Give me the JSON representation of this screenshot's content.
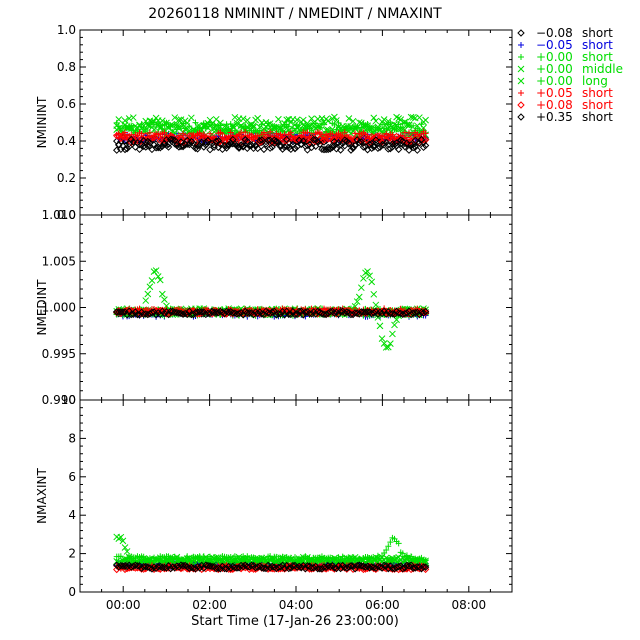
{
  "title": "20260118 NMININT / NMEDINT / NMAXINT",
  "xlabel": "Start Time (17-Jan-26 23:00:00)",
  "legend_placement": "top-right",
  "legend": [
    {
      "symbol": "diamond",
      "value": "−0.08",
      "band": "short",
      "color": "#000000"
    },
    {
      "symbol": "plus",
      "value": "−0.05",
      "band": "short",
      "color": "#0000dd"
    },
    {
      "symbol": "plus",
      "value": "+0.00",
      "band": "short",
      "color": "#00dd00"
    },
    {
      "symbol": "cross",
      "value": "+0.00",
      "band": "middle",
      "color": "#00dd00"
    },
    {
      "symbol": "cross",
      "value": "+0.00",
      "band": "long",
      "color": "#00dd00"
    },
    {
      "symbol": "plus",
      "value": "+0.05",
      "band": "short",
      "color": "#ff0000"
    },
    {
      "symbol": "diamond",
      "value": "+0.08",
      "band": "short",
      "color": "#ff0000"
    },
    {
      "symbol": "diamond",
      "value": "+0.35",
      "band": "short",
      "color": "#000000"
    }
  ],
  "chart_data": [
    {
      "type": "scatter",
      "ylabel": "NMININT",
      "xlim": [
        -1,
        9
      ],
      "ylim": [
        0.0,
        1.0
      ],
      "xticks": [
        "00:00",
        "02:00",
        "04:00",
        "06:00",
        "08:00"
      ],
      "yticks": [
        "0.0",
        "0.2",
        "0.4",
        "0.6",
        "0.8",
        "1.0"
      ],
      "x_range": [
        -0.15,
        7.0
      ],
      "series": [
        {
          "color": "#000000",
          "symbol": "diamond",
          "level": 0.39,
          "spread": 0.03
        },
        {
          "color": "#0000dd",
          "symbol": "plus",
          "level": 0.42,
          "spread": 0.02
        },
        {
          "color": "#00dd00",
          "symbol": "plus",
          "level": 0.47,
          "spread": 0.03
        },
        {
          "color": "#00dd00",
          "symbol": "cross",
          "level": 0.49,
          "spread": 0.04
        },
        {
          "color": "#00dd00",
          "symbol": "cross",
          "level": 0.46,
          "spread": 0.03
        },
        {
          "color": "#ff0000",
          "symbol": "plus",
          "level": 0.43,
          "spread": 0.02
        },
        {
          "color": "#ff0000",
          "symbol": "diamond",
          "level": 0.41,
          "spread": 0.02
        },
        {
          "color": "#000000",
          "symbol": "diamond",
          "level": 0.38,
          "spread": 0.03
        }
      ]
    },
    {
      "type": "scatter",
      "ylabel": "NMEDINT",
      "xlim": [
        -1,
        9
      ],
      "ylim": [
        0.99,
        1.01
      ],
      "xticks": [
        "00:00",
        "02:00",
        "04:00",
        "06:00",
        "08:00"
      ],
      "yticks": [
        "0.990",
        "0.995",
        "1.000",
        "1.005",
        "1.010"
      ],
      "x_range": [
        -0.15,
        7.0
      ],
      "series": [
        {
          "color": "#000000",
          "symbol": "diamond",
          "level": 0.9995,
          "spread": 0.0002
        },
        {
          "color": "#0000dd",
          "symbol": "plus",
          "level": 0.9993,
          "spread": 0.0003
        },
        {
          "color": "#00dd00",
          "symbol": "plus",
          "level": 0.9995,
          "spread": 0.0004
        },
        {
          "color": "#00dd00",
          "symbol": "cross",
          "level": 0.9996,
          "spread": 0.0003,
          "bumps": [
            {
              "x": 0.75,
              "h": 0.0045
            },
            {
              "x": 5.65,
              "h": 0.0045
            },
            {
              "x": 6.1,
              "h": -0.004
            }
          ]
        },
        {
          "color": "#00dd00",
          "symbol": "cross",
          "level": 0.9995,
          "spread": 0.0003
        },
        {
          "color": "#ff0000",
          "symbol": "plus",
          "level": 0.9996,
          "spread": 0.0003
        },
        {
          "color": "#ff0000",
          "symbol": "diamond",
          "level": 0.9995,
          "spread": 0.0002
        },
        {
          "color": "#000000",
          "symbol": "diamond",
          "level": 0.9994,
          "spread": 0.0002
        }
      ]
    },
    {
      "type": "scatter",
      "ylabel": "NMAXINT",
      "xlim": [
        -1,
        9
      ],
      "ylim": [
        0,
        10
      ],
      "xticks": [
        "00:00",
        "02:00",
        "04:00",
        "06:00",
        "08:00"
      ],
      "yticks": [
        "0",
        "2",
        "4",
        "6",
        "8",
        "10"
      ],
      "x_range": [
        -0.15,
        7.0
      ],
      "series": [
        {
          "color": "#000000",
          "symbol": "diamond",
          "level": 1.35,
          "spread": 0.1
        },
        {
          "color": "#0000dd",
          "symbol": "plus",
          "level": 1.4,
          "spread": 0.1
        },
        {
          "color": "#00dd00",
          "symbol": "plus",
          "level": 1.75,
          "spread": 0.12,
          "bumps": [
            {
              "x": 6.25,
              "h": 1.1
            }
          ]
        },
        {
          "color": "#00dd00",
          "symbol": "cross",
          "level": 1.7,
          "spread": 0.12,
          "bumps": [
            {
              "x": -0.1,
              "h": 1.2
            }
          ]
        },
        {
          "color": "#00dd00",
          "symbol": "cross",
          "level": 1.6,
          "spread": 0.1
        },
        {
          "color": "#ff0000",
          "symbol": "plus",
          "level": 1.3,
          "spread": 0.1
        },
        {
          "color": "#ff0000",
          "symbol": "diamond",
          "level": 1.25,
          "spread": 0.08
        },
        {
          "color": "#000000",
          "symbol": "diamond",
          "level": 1.3,
          "spread": 0.1
        }
      ]
    }
  ]
}
